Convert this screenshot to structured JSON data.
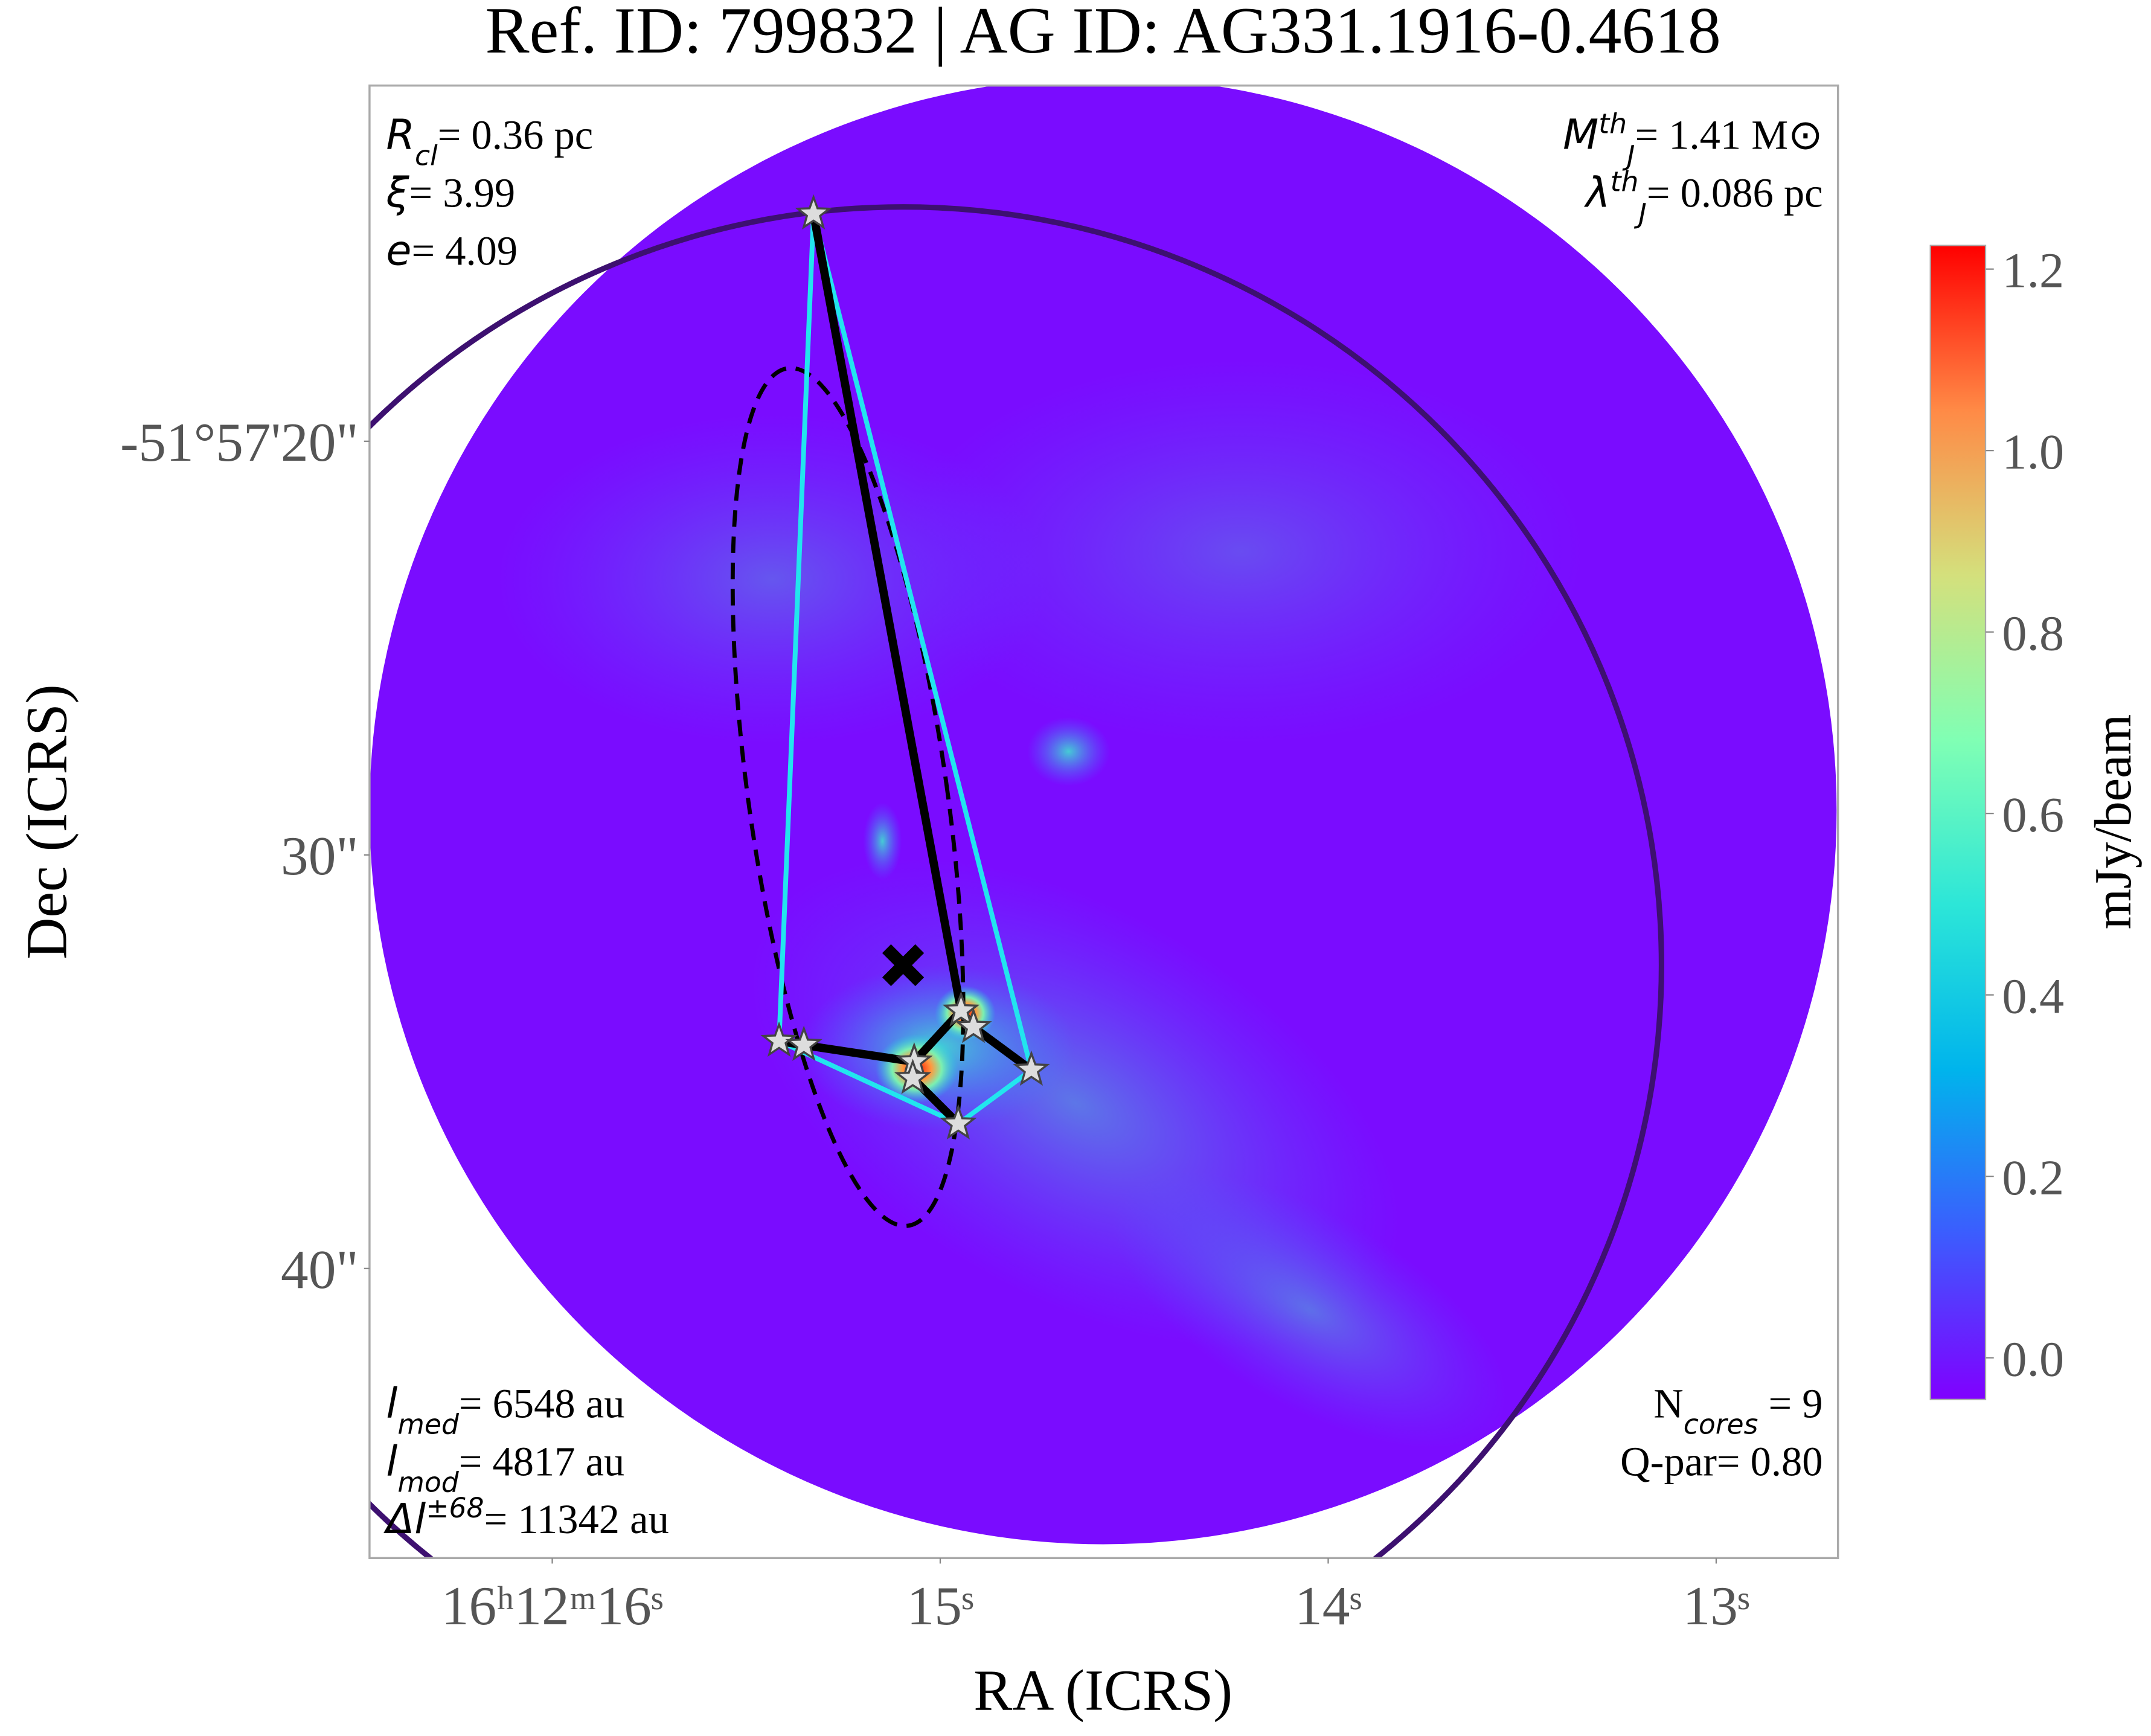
{
  "chart_data": {
    "type": "image",
    "title": "Ref. ID: 799832 | AG ID: AG331.1916-0.4618",
    "xlabel": "RA (ICRS)",
    "ylabel": "Dec (ICRS)",
    "xlim": [
      16.471,
      12.686
    ],
    "xticks": [
      {
        "value": 16,
        "label": "16ʰ12ᵐ16ˢ"
      },
      {
        "value": 15,
        "label": "15ˢ"
      },
      {
        "value": 14,
        "label": "14ˢ"
      },
      {
        "value": 13,
        "label": "13ˢ"
      }
    ],
    "ylim": [
      47,
      11.4
    ],
    "y_inverted": true,
    "yticks": [
      {
        "value": 20,
        "label": "-51°57'20\""
      },
      {
        "value": 30,
        "label": "30\""
      },
      {
        "value": 40,
        "label": "40\""
      }
    ],
    "colorbar": {
      "label": "mJy/beam",
      "clim": [
        -0.046,
        1.226
      ],
      "ticks": [
        {
          "value": 0,
          "label": "0.0"
        },
        {
          "value": 0.2,
          "label": "0.2"
        },
        {
          "value": 0.4,
          "label": "0.4"
        },
        {
          "value": 0.6,
          "label": "0.6"
        },
        {
          "value": 0.8,
          "label": "0.8"
        },
        {
          "value": 1,
          "label": "1.0"
        },
        {
          "value": 1.2,
          "label": "1.2"
        }
      ],
      "colors": [
        "#8000ff",
        "#3c5cfe",
        "#00b4ec",
        "#2ce6d8",
        "#80ffb4",
        "#d4e07c",
        "#ff8a46",
        "#ff0000"
      ]
    },
    "annotations": {
      "top_left": [
        [
          {
            "text": "R",
            "style": "italic"
          },
          {
            "text": "cl",
            "style": "sub"
          },
          {
            "text": "= 0.36 pc"
          }
        ],
        [
          {
            "text": "ξ",
            "style": "italic"
          },
          {
            "text": "= 3.99"
          }
        ],
        [
          {
            "text": "e",
            "style": "italic"
          },
          {
            "text": "= 4.09"
          }
        ]
      ],
      "top_right": [
        [
          {
            "text": "M",
            "style": "italic"
          },
          {
            "text": "th",
            "style": "sup"
          },
          {
            "text": "J",
            "style": "sub"
          },
          {
            "text": "= 1.41 M⊙"
          }
        ],
        [
          {
            "text": "λ",
            "style": "italic"
          },
          {
            "text": "th",
            "style": "sup"
          },
          {
            "text": "J",
            "style": "sub"
          },
          {
            "text": "= 0.086 pc"
          }
        ]
      ],
      "bottom_left": [
        [
          {
            "text": "l",
            "style": "italic"
          },
          {
            "text": "med",
            "style": "sub"
          },
          {
            "text": "= 6548 au"
          }
        ],
        [
          {
            "text": "l",
            "style": "italic"
          },
          {
            "text": "mod",
            "style": "sub"
          },
          {
            "text": "= 4817 au"
          }
        ],
        [
          {
            "text": "Δl",
            "style": "italic"
          },
          {
            "text": "±68",
            "style": "sup"
          },
          {
            "text": "= 11342 au"
          }
        ]
      ],
      "bottom_right": [
        [
          {
            "text": "N"
          },
          {
            "text": "cores",
            "style": "sub"
          },
          {
            "text": " = 9"
          }
        ],
        [
          {
            "text": "Q-par= 0.80"
          }
        ]
      ]
    }
  }
}
